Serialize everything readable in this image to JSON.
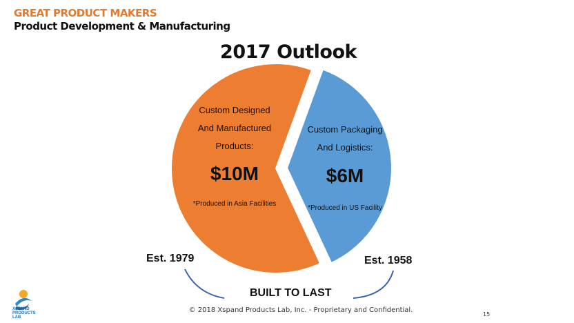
{
  "header": {
    "company": "GREAT PRODUCT MAKERS",
    "subtitle": "Product Development & Manufacturing"
  },
  "chart_data": {
    "type": "pie",
    "title": "2017 Outlook",
    "slices": [
      {
        "name": "Custom Designed And Manufactured Products",
        "line1": "Custom Designed",
        "line2": "And Manufactured",
        "line3": "Products:",
        "value": 10,
        "value_label": "$10M",
        "note": "*Produced in Asia Facilities",
        "color": "#ED7D31",
        "exploded": false
      },
      {
        "name": "Custom Packaging And Logistics",
        "line1": "Custom Packaging",
        "line2": "And Logistics:",
        "value": 6,
        "value_label": "$6M",
        "note": "*Produced in US Facility",
        "color": "#5B9BD5",
        "exploded": true
      }
    ]
  },
  "annotations": {
    "est_left": "Est. 1979",
    "est_right": "Est. 1958",
    "built": "BUILT TO LAST"
  },
  "footer": {
    "copyright": "© 2018 Xspand Products Lab, Inc. - Proprietary and Confidential.",
    "page": "15",
    "logo_text": "XSPAND PRODUCTS LAB"
  }
}
